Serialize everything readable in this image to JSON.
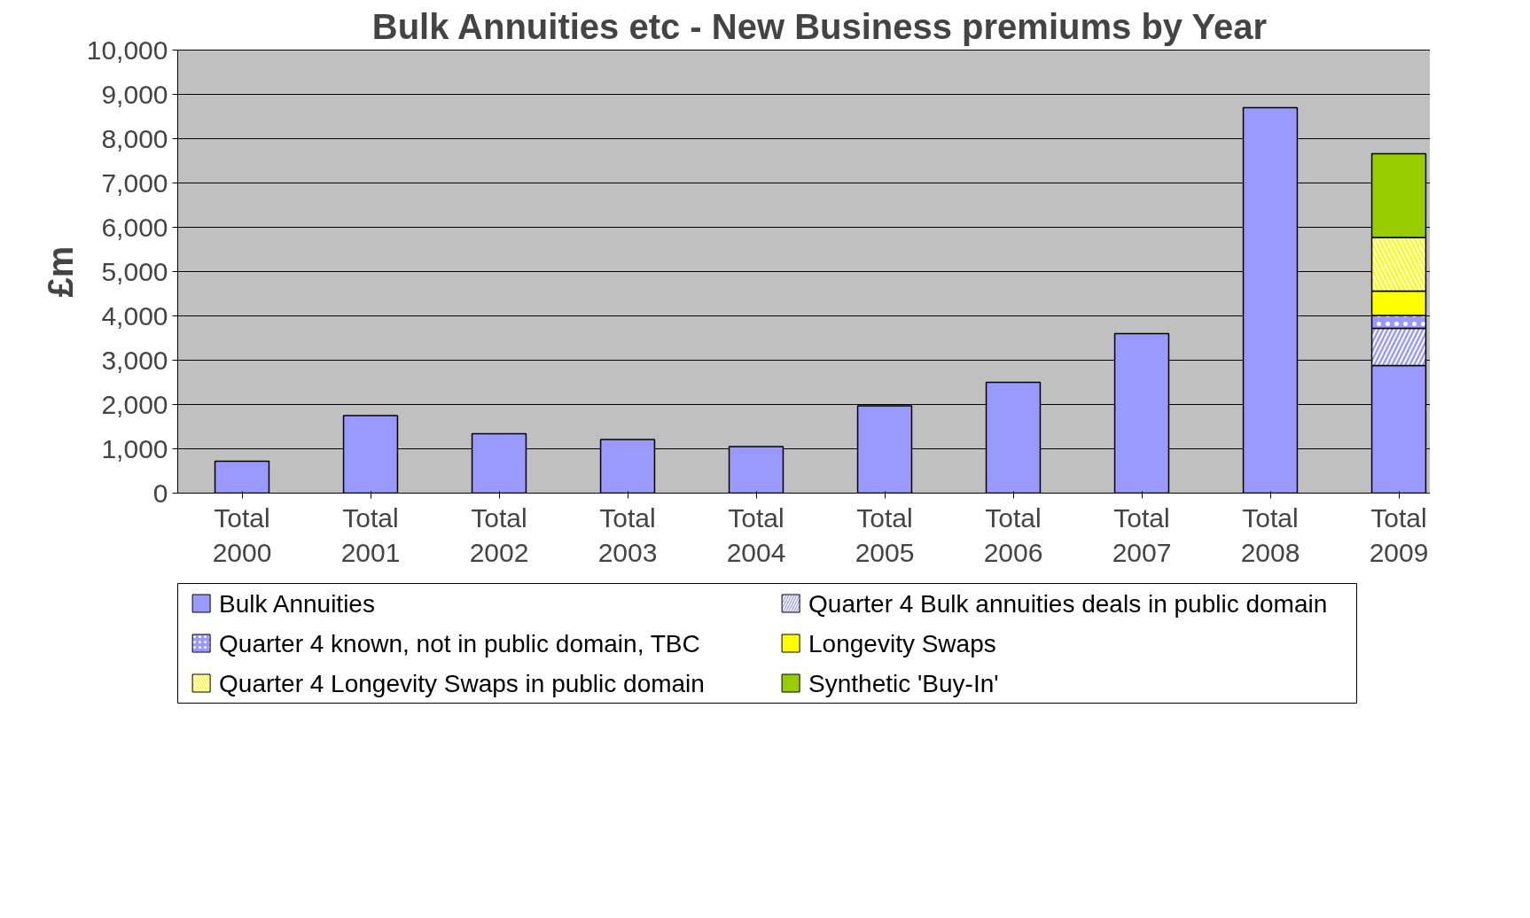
{
  "chart_data": {
    "type": "bar",
    "stacked": true,
    "title": "Bulk Annuities etc - New Business premiums by Year",
    "ylabel": "£m",
    "categories": [
      "Total 2000",
      "Total 2001",
      "Total 2002",
      "Total 2003",
      "Total 2004",
      "Total 2005",
      "Total 2006",
      "Total 2007",
      "Total 2008",
      "Total 2009"
    ],
    "series": [
      {
        "name": "Bulk Annuities",
        "color": "#9999ff",
        "values": [
          720,
          1750,
          1340,
          1210,
          1050,
          1970,
          2500,
          3600,
          8700,
          2880
        ]
      },
      {
        "name": "Quarter 4 Bulk annuities deals in public domain",
        "color": "#9999ff",
        "values": [
          null,
          null,
          null,
          null,
          null,
          null,
          null,
          null,
          null,
          840
        ]
      },
      {
        "name": "Quarter 4 known, not in public domain, TBC",
        "color": "#9999ff",
        "values": [
          null,
          null,
          null,
          null,
          null,
          null,
          null,
          null,
          null,
          290
        ]
      },
      {
        "name": "Longevity Swaps",
        "color": "#ffff00",
        "values": [
          null,
          null,
          null,
          null,
          null,
          null,
          null,
          null,
          null,
          550
        ]
      },
      {
        "name": "Quarter 4 Longevity Swaps in public domain",
        "color": "#ffff00",
        "values": [
          null,
          null,
          null,
          null,
          null,
          null,
          null,
          null,
          null,
          1210
        ]
      },
      {
        "name": "Synthetic 'Buy-In'",
        "color": "#99cc00",
        "values": [
          null,
          null,
          null,
          null,
          null,
          null,
          null,
          null,
          null,
          1890
        ]
      }
    ],
    "ylim": [
      0,
      10000
    ],
    "yticks": [
      0,
      {
        "value": 1000,
        "label": "1,000"
      },
      {
        "value": 2000,
        "label": "2,000"
      },
      {
        "value": 3000,
        "label": "3,000"
      },
      {
        "value": 4000,
        "label": "4,000"
      },
      {
        "value": 5000,
        "label": "5,000"
      },
      {
        "value": 6000,
        "label": "6,000"
      },
      {
        "value": 7000,
        "label": "7,000"
      },
      {
        "value": 8000,
        "label": "8,000"
      },
      {
        "value": 9000,
        "label": "9,000"
      },
      {
        "value": 10000,
        "label": "10,000"
      }
    ],
    "grid": "y",
    "legend": "bottom"
  }
}
